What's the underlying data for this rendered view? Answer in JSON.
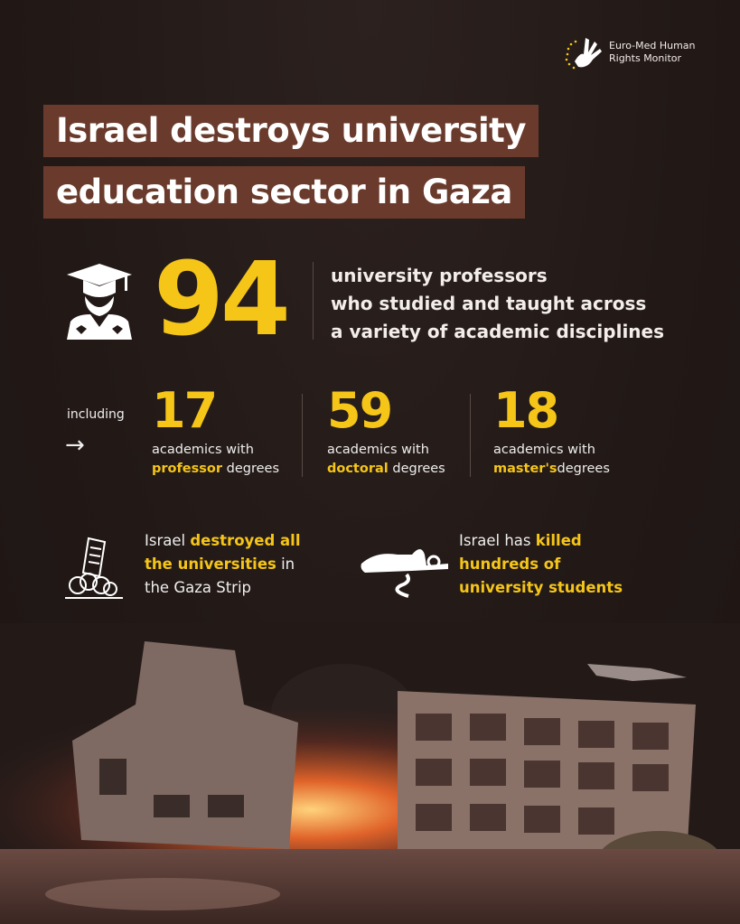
{
  "brand": {
    "logo_name": "Euro-Med Human Rights Monitor",
    "line1": "Euro-Med Human",
    "line2": "Rights Monitor"
  },
  "title": {
    "line1": "Israel destroys university",
    "line2": "education sector in Gaza"
  },
  "headline": {
    "number": "94",
    "lines": [
      "university professors",
      "who studied and taught across",
      "a variety of academic disciplines"
    ]
  },
  "breakdown": {
    "including": "including",
    "arrow": "→",
    "stats": [
      {
        "number": "17",
        "line1": "academics with",
        "highlight": "professor",
        "rest": " degrees"
      },
      {
        "number": "59",
        "line1": "academics with",
        "highlight": "doctoral",
        "rest": " degrees"
      },
      {
        "number": "18",
        "line1": "academics with",
        "highlight": "master's",
        "rest": "degrees"
      }
    ]
  },
  "facts": [
    {
      "pre": "Israel ",
      "h1": "destroyed all",
      "h2": "the universities",
      "post": " in",
      "last": "the Gaza Strip",
      "icon": "collapsing-building-icon"
    },
    {
      "pre": "Israel has ",
      "h1": "killed",
      "h2": "hundreds of",
      "last": "university students",
      "icon": "fallen-person-icon"
    }
  ],
  "colors": {
    "accent": "#f5c518",
    "title_bg": "#6a3b2c",
    "background": "#231a18"
  }
}
